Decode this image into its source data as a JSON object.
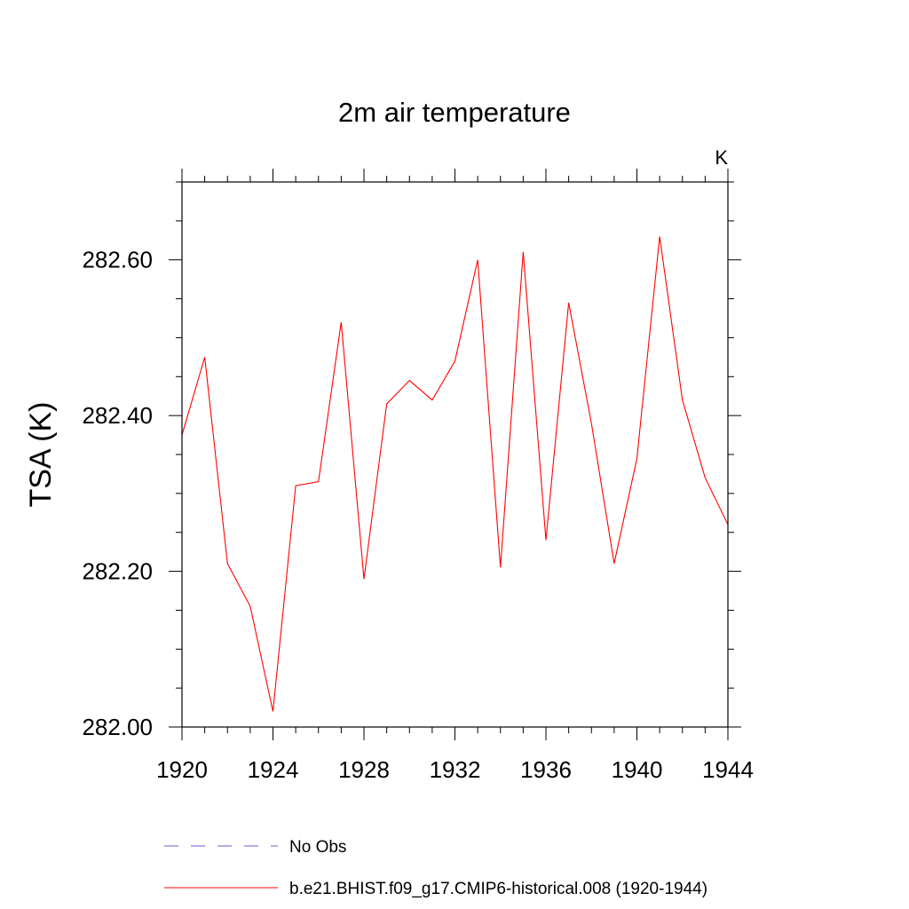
{
  "chart_data": {
    "type": "line",
    "title": "2m air temperature",
    "units_label": "K",
    "xlabel": "",
    "ylabel": "TSA  (K)",
    "xlim": [
      1920,
      1944
    ],
    "ylim": [
      282.0,
      282.7
    ],
    "x_ticks": [
      1920,
      1924,
      1928,
      1932,
      1936,
      1940,
      1944
    ],
    "x_tick_labels": [
      "1920",
      "1924",
      "1928",
      "1932",
      "1936",
      "1940",
      "1944"
    ],
    "x_minor_step": 1,
    "y_ticks": [
      282.0,
      282.2,
      282.4,
      282.6
    ],
    "y_tick_labels": [
      "282.00",
      "282.20",
      "282.40",
      "282.60"
    ],
    "y_minor_step": 0.05,
    "grid": false,
    "legend_position": "bottom-left",
    "series": [
      {
        "name": "No Obs",
        "color": "#6a5acd",
        "dash": "dashed",
        "x": [],
        "values": []
      },
      {
        "name": "b.e21.BHIST.f09_g17.CMIP6-historical.008 (1920-1944)",
        "color": "#ff0000",
        "dash": "solid",
        "x": [
          1920,
          1921,
          1922,
          1923,
          1924,
          1925,
          1926,
          1927,
          1928,
          1929,
          1930,
          1931,
          1932,
          1933,
          1934,
          1935,
          1936,
          1937,
          1938,
          1939,
          1940,
          1941,
          1942,
          1943,
          1944
        ],
        "values": [
          282.375,
          282.475,
          282.21,
          282.155,
          282.02,
          282.31,
          282.315,
          282.52,
          282.19,
          282.415,
          282.445,
          282.42,
          282.47,
          282.6,
          282.205,
          282.61,
          282.24,
          282.545,
          282.39,
          282.21,
          282.345,
          282.63,
          282.42,
          282.32,
          282.26
        ]
      }
    ]
  }
}
